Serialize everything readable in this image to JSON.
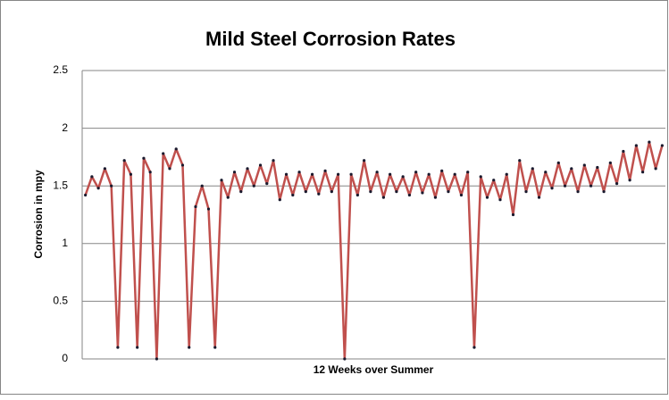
{
  "chart_data": {
    "type": "line",
    "title": "Mild Steel Corrosion Rates",
    "y_label": "Corrosion in mpy",
    "x_label": "12 Weeks over Summer",
    "series": [
      {
        "color": "#c0504d",
        "marker_color": "#1a1a2e",
        "values": [
          1.42,
          1.58,
          1.48,
          1.65,
          1.5,
          0.1,
          1.72,
          1.6,
          0.1,
          1.74,
          1.62,
          0,
          1.78,
          1.65,
          1.82,
          1.68,
          0.1,
          1.32,
          1.5,
          1.3,
          0.1,
          1.55,
          1.4,
          1.62,
          1.45,
          1.65,
          1.5,
          1.68,
          1.52,
          1.72,
          1.38,
          1.6,
          1.42,
          1.62,
          1.45,
          1.6,
          1.43,
          1.63,
          1.45,
          1.6,
          0,
          1.6,
          1.42,
          1.72,
          1.45,
          1.62,
          1.4,
          1.6,
          1.45,
          1.58,
          1.42,
          1.62,
          1.44,
          1.6,
          1.4,
          1.63,
          1.45,
          1.6,
          1.42,
          1.62,
          0.1,
          1.58,
          1.4,
          1.55,
          1.38,
          1.6,
          1.25,
          1.72,
          1.45,
          1.65,
          1.4,
          1.62,
          1.48,
          1.7,
          1.5,
          1.65,
          1.45,
          1.68,
          1.5,
          1.66,
          1.45,
          1.7,
          1.52,
          1.8,
          1.55,
          1.85,
          1.62,
          1.88,
          1.65,
          1.85
        ]
      }
    ],
    "ylim": [
      0,
      2.5
    ],
    "yticks": [
      0,
      0.5,
      1,
      1.5,
      2,
      2.5
    ],
    "grid": true
  }
}
